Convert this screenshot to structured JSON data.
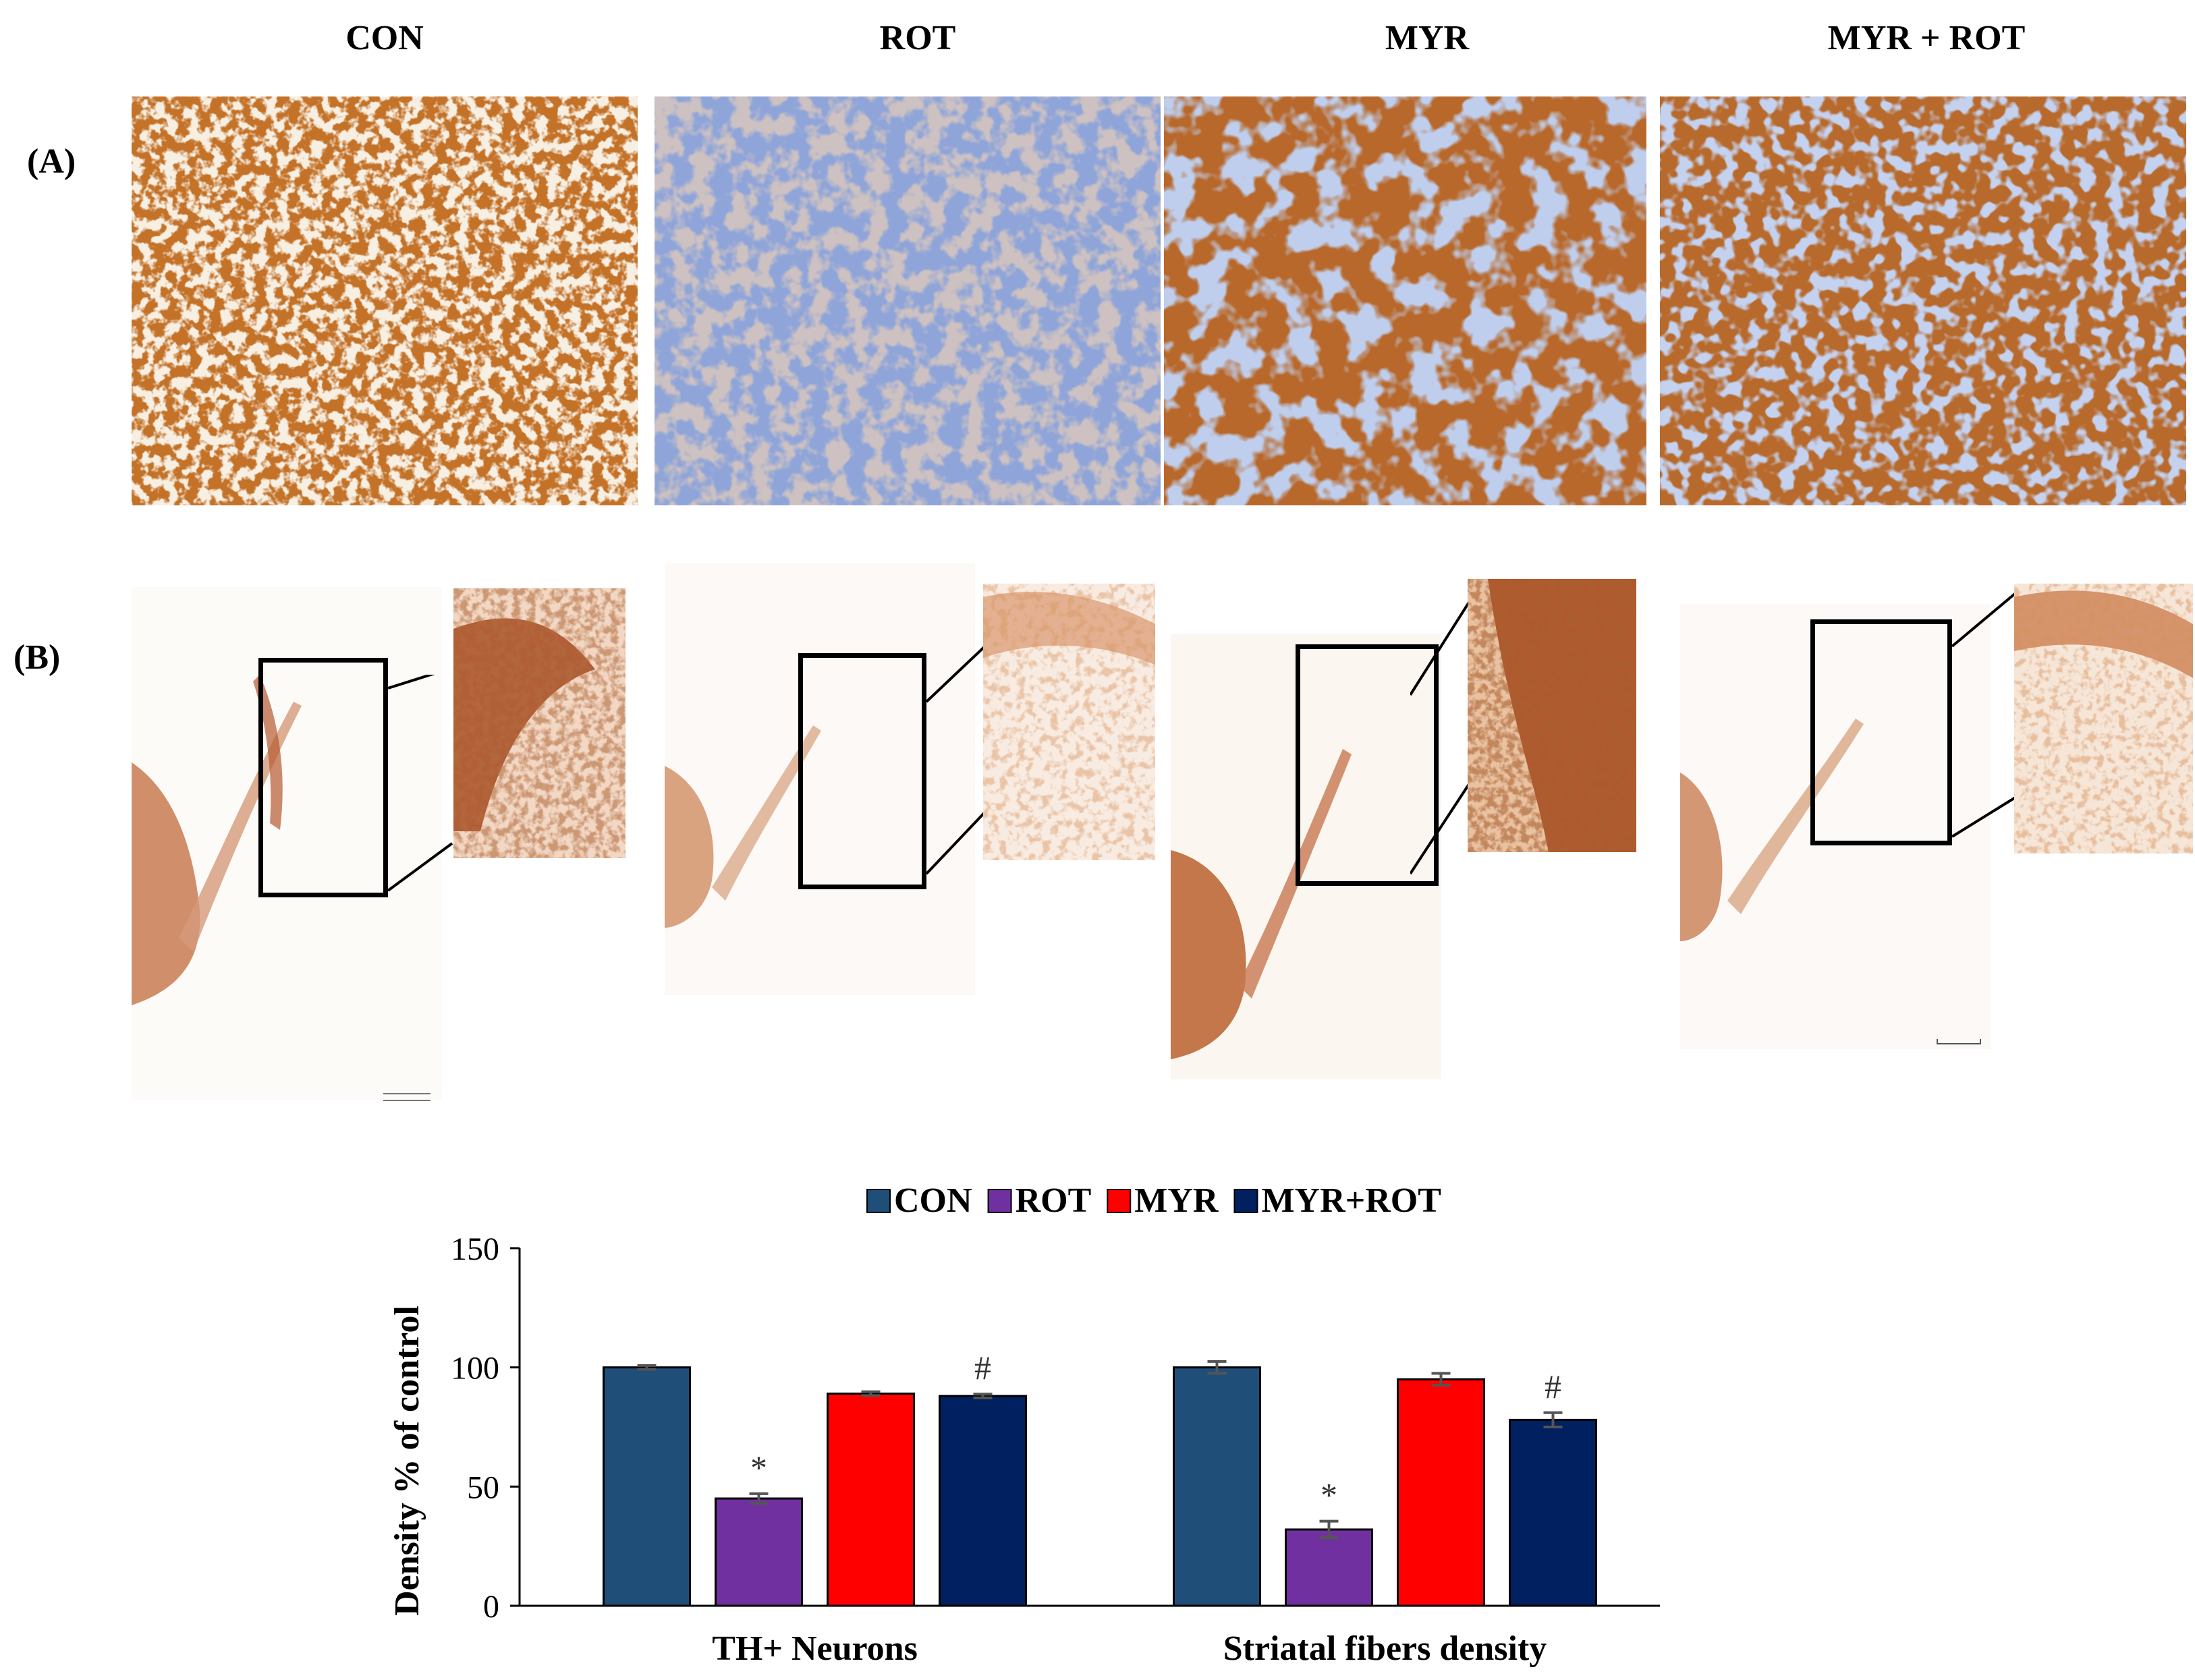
{
  "groups": [
    "CON",
    "ROT",
    "MYR",
    "MYR + ROT"
  ],
  "row_labels": {
    "a": "(A)",
    "b": "(B)"
  },
  "chart_data": {
    "type": "bar",
    "title": "",
    "legend": [
      "CON",
      "ROT",
      "MYR",
      "MYR+ROT"
    ],
    "legend_position": "top",
    "categories": [
      "TH+ Neurons",
      "Striatal fibers density"
    ],
    "series": [
      {
        "name": "CON",
        "color": "#1f4e79",
        "values": [
          100,
          100
        ],
        "errors": [
          0.8,
          2.5
        ]
      },
      {
        "name": "ROT",
        "color": "#7030a0",
        "values": [
          45,
          32
        ],
        "errors": [
          2,
          3.5
        ]
      },
      {
        "name": "MYR",
        "color": "#ff0000",
        "values": [
          89,
          95
        ],
        "errors": [
          0.8,
          2.5
        ]
      },
      {
        "name": "MYR+ROT",
        "color": "#002060",
        "values": [
          88,
          78
        ],
        "errors": [
          0.8,
          3
        ]
      }
    ],
    "annotations": [
      {
        "series": "ROT",
        "category": "TH+ Neurons",
        "text": "*"
      },
      {
        "series": "MYR+ROT",
        "category": "TH+ Neurons",
        "text": "#"
      },
      {
        "series": "ROT",
        "category": "Striatal fibers density",
        "text": "*"
      },
      {
        "series": "MYR+ROT",
        "category": "Striatal fibers density",
        "text": "#"
      }
    ],
    "ylabel": "Density % of control",
    "xlabel": "",
    "ylim": [
      0,
      150
    ],
    "yticks": [
      0,
      50,
      100,
      150
    ],
    "grid": false
  }
}
